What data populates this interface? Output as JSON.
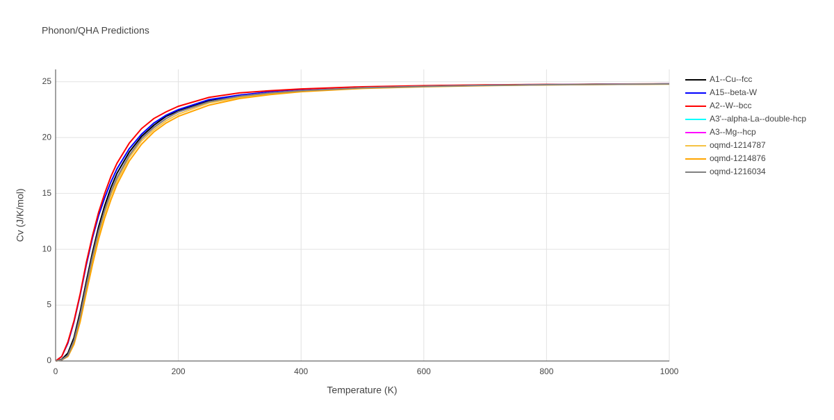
{
  "chart_data": {
    "type": "line",
    "title": "Phonon/QHA Predictions",
    "x_label": "Temperature (K)",
    "y_label": "Cv (J/K/mol)",
    "x": [
      0,
      10,
      20,
      30,
      40,
      50,
      60,
      70,
      80,
      90,
      100,
      120,
      140,
      160,
      180,
      200,
      250,
      300,
      350,
      400,
      500,
      600,
      700,
      800,
      900,
      1000
    ],
    "series": [
      {
        "name": "A1--Cu--fcc",
        "color": "#000000",
        "values": [
          0,
          0.15,
          0.7,
          2.1,
          4.4,
          7.1,
          9.7,
          12.0,
          13.9,
          15.5,
          16.8,
          18.7,
          20.1,
          21.1,
          21.9,
          22.4,
          23.3,
          23.8,
          24.05,
          24.25,
          24.48,
          24.6,
          24.68,
          24.74,
          24.78,
          24.8
        ]
      },
      {
        "name": "A15--beta-W",
        "color": "#0000ff",
        "values": [
          0,
          0.4,
          1.6,
          3.5,
          5.9,
          8.6,
          11.0,
          13.0,
          14.6,
          16.0,
          17.2,
          19.0,
          20.3,
          21.3,
          22.0,
          22.5,
          23.4,
          23.8,
          24.1,
          24.3,
          24.5,
          24.62,
          24.7,
          24.75,
          24.78,
          24.8
        ]
      },
      {
        "name": "A2--W--bcc",
        "color": "#ff0000",
        "values": [
          0,
          0.4,
          1.7,
          3.6,
          6.0,
          8.8,
          11.2,
          13.3,
          15.0,
          16.5,
          17.7,
          19.5,
          20.8,
          21.7,
          22.3,
          22.8,
          23.6,
          24.0,
          24.2,
          24.35,
          24.55,
          24.65,
          24.72,
          24.76,
          24.79,
          24.81
        ]
      },
      {
        "name": "A3'--alpha-La--double-hcp",
        "color": "#00ffff",
        "values": [
          0,
          0.1,
          0.5,
          1.8,
          4.0,
          6.7,
          9.3,
          11.6,
          13.5,
          15.1,
          16.4,
          18.4,
          19.9,
          20.9,
          21.7,
          22.3,
          23.2,
          23.7,
          24.0,
          24.2,
          24.45,
          24.58,
          24.67,
          24.73,
          24.77,
          24.8
        ]
      },
      {
        "name": "A3--Mg--hcp",
        "color": "#ff00ff",
        "values": [
          0,
          0.1,
          0.5,
          1.8,
          4.0,
          6.7,
          9.3,
          11.6,
          13.5,
          15.1,
          16.4,
          18.4,
          19.9,
          20.9,
          21.7,
          22.3,
          23.2,
          23.7,
          24.0,
          24.2,
          24.45,
          24.58,
          24.67,
          24.73,
          24.77,
          24.8
        ]
      },
      {
        "name": "oqmd-1214787",
        "color": "#f5c242",
        "values": [
          0,
          0.1,
          0.45,
          1.7,
          3.8,
          6.5,
          9.0,
          11.3,
          13.2,
          14.8,
          16.1,
          18.2,
          19.7,
          20.7,
          21.5,
          22.1,
          23.1,
          23.6,
          23.95,
          24.15,
          24.43,
          24.57,
          24.66,
          24.72,
          24.76,
          24.79
        ]
      },
      {
        "name": "oqmd-1214876",
        "color": "#ffa500",
        "values": [
          0,
          0.1,
          0.4,
          1.5,
          3.5,
          6.1,
          8.6,
          10.9,
          12.8,
          14.4,
          15.8,
          17.9,
          19.4,
          20.5,
          21.3,
          21.9,
          22.9,
          23.5,
          23.85,
          24.1,
          24.4,
          24.55,
          24.65,
          24.72,
          24.76,
          24.79
        ]
      },
      {
        "name": "oqmd-1216034",
        "color": "#808080",
        "values": [
          0,
          0.1,
          0.5,
          1.8,
          4.0,
          6.7,
          9.3,
          11.6,
          13.5,
          15.1,
          16.4,
          18.4,
          19.9,
          20.9,
          21.7,
          22.3,
          23.2,
          23.7,
          24.0,
          24.2,
          24.45,
          24.58,
          24.67,
          24.73,
          24.77,
          24.8
        ]
      }
    ],
    "xlim": [
      0,
      1000
    ],
    "xticks": [
      0,
      200,
      400,
      600,
      800,
      1000
    ],
    "ylim": [
      0,
      26.1
    ],
    "yticks": [
      0,
      5,
      10,
      15,
      20,
      25
    ],
    "grid": true
  }
}
